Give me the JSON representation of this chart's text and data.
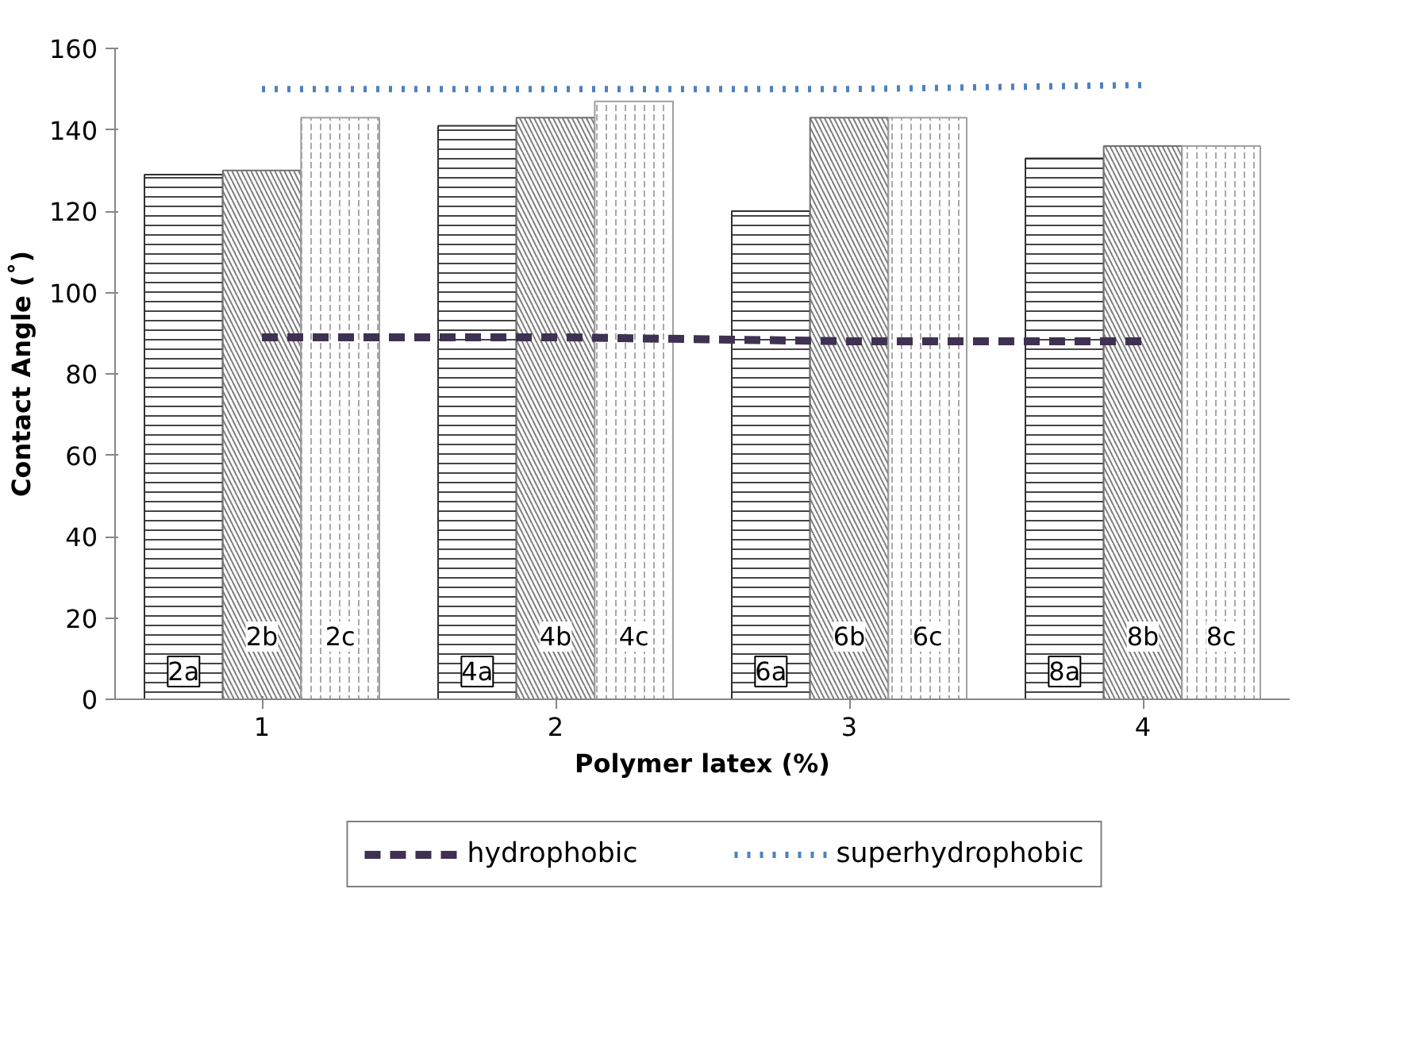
{
  "chart_data": {
    "type": "bar",
    "xlabel": "Polymer latex (%)",
    "ylabel": "Contact Angle (˚)",
    "categories": [
      "1",
      "2",
      "3",
      "4"
    ],
    "ylim": [
      0,
      160
    ],
    "yticks": [
      0,
      20,
      40,
      60,
      80,
      100,
      120,
      140,
      160
    ],
    "grid": false,
    "legend": "bottom",
    "annotations": [
      "2a",
      "2b",
      "2c",
      "4a",
      "4b",
      "4c",
      "6a",
      "6b",
      "6c",
      "8a",
      "8b",
      "8c"
    ],
    "series": [
      {
        "color": "#303030",
        "values": [
          129,
          141,
          120,
          133
        ]
      },
      {
        "color": "#707070",
        "values": [
          130,
          143,
          143,
          136
        ]
      },
      {
        "color": "#a0a0a0",
        "values": [
          143,
          147,
          143,
          136
        ]
      },
      {
        "type": "line",
        "name": "hydrophobic",
        "color": "#3f3151",
        "line_style": "dashed",
        "values": [
          89,
          89,
          88,
          88
        ]
      },
      {
        "type": "line",
        "name": "superhydrophobic",
        "color": "#4f81bd",
        "line_style": "dotted",
        "values": [
          150,
          150,
          150,
          151
        ]
      }
    ]
  }
}
